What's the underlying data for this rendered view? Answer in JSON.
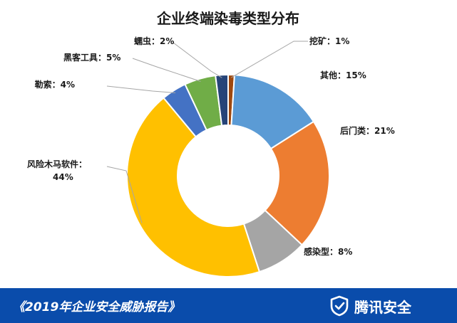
{
  "chart_data": {
    "type": "pie",
    "donut": true,
    "title": "企业终端染毒类型分布",
    "legend": "none",
    "slices": [
      {
        "name": "挖矿",
        "value": 1,
        "color": "#9e480e",
        "label": "挖矿：1%"
      },
      {
        "name": "其他",
        "value": 15,
        "color": "#5b9bd5",
        "label": "其他：15%"
      },
      {
        "name": "后门类",
        "value": 21,
        "color": "#ed7d31",
        "label": "后门类：21%"
      },
      {
        "name": "感染型",
        "value": 8,
        "color": "#a5a5a5",
        "label": "感染型：8%"
      },
      {
        "name": "风险木马软件",
        "value": 44,
        "color": "#ffc000",
        "label": "风险木马软件：",
        "label2": "44%"
      },
      {
        "name": "勒索",
        "value": 4,
        "color": "#4472c4",
        "label": "勒索：4%"
      },
      {
        "name": "黑客工具",
        "value": 5,
        "color": "#70ad47",
        "label": "黑客工具：5%"
      },
      {
        "name": "蠕虫",
        "value": 2,
        "color": "#264478",
        "label": "蠕虫：2%"
      }
    ]
  },
  "footer": {
    "report": "《2019年企业安全威胁报告》",
    "brand": "腾讯安全",
    "background": "#0a4cab"
  }
}
